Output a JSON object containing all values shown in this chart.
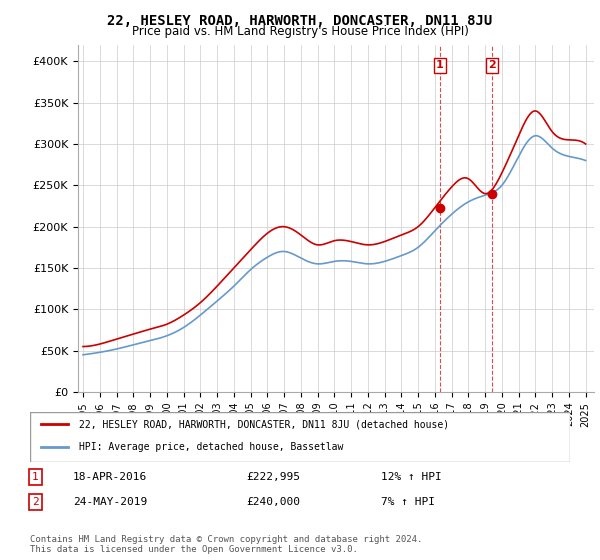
{
  "title": "22, HESLEY ROAD, HARWORTH, DONCASTER, DN11 8JU",
  "subtitle": "Price paid vs. HM Land Registry's House Price Index (HPI)",
  "ylabel_ticks": [
    "£0",
    "£50K",
    "£100K",
    "£150K",
    "£200K",
    "£250K",
    "£300K",
    "£350K",
    "£400K"
  ],
  "ytick_values": [
    0,
    50000,
    100000,
    150000,
    200000,
    250000,
    300000,
    350000,
    400000
  ],
  "ylim": [
    0,
    420000
  ],
  "xlim_start": 1995.0,
  "xlim_end": 2025.5,
  "red_color": "#cc0000",
  "blue_color": "#6699cc",
  "grid_color": "#cccccc",
  "bg_color": "#ffffff",
  "transaction1_x": 2016.3,
  "transaction1_y": 222995,
  "transaction2_x": 2019.4,
  "transaction2_y": 240000,
  "legend_red": "22, HESLEY ROAD, HARWORTH, DONCASTER, DN11 8JU (detached house)",
  "legend_blue": "HPI: Average price, detached house, Bassetlaw",
  "note1_date": "18-APR-2016",
  "note1_price": "£222,995",
  "note1_hpi": "12% ↑ HPI",
  "note2_date": "24-MAY-2019",
  "note2_price": "£240,000",
  "note2_hpi": "7% ↑ HPI",
  "footer": "Contains HM Land Registry data © Crown copyright and database right 2024.\nThis data is licensed under the Open Government Licence v3.0.",
  "hpi_years": [
    1995,
    1996,
    1997,
    1998,
    1999,
    2000,
    2001,
    2002,
    2003,
    2004,
    2005,
    2006,
    2007,
    2008,
    2009,
    2010,
    2011,
    2012,
    2013,
    2014,
    2015,
    2016,
    2017,
    2018,
    2019,
    2020,
    2021,
    2022,
    2023,
    2024,
    2025
  ],
  "hpi_values": [
    45000,
    48000,
    52000,
    57000,
    62000,
    68000,
    78000,
    93000,
    110000,
    128000,
    148000,
    163000,
    170000,
    162000,
    155000,
    158000,
    158000,
    155000,
    158000,
    165000,
    175000,
    195000,
    215000,
    230000,
    238000,
    250000,
    285000,
    310000,
    295000,
    285000,
    280000
  ],
  "red_years": [
    1995,
    1996,
    1997,
    1998,
    1999,
    2000,
    2001,
    2002,
    2003,
    2004,
    2005,
    2006,
    2007,
    2008,
    2009,
    2010,
    2011,
    2012,
    2013,
    2014,
    2015,
    2016,
    2017,
    2018,
    2019,
    2020,
    2021,
    2022,
    2023,
    2024,
    2025
  ],
  "red_values": [
    55000,
    58000,
    64000,
    70000,
    76000,
    82000,
    93000,
    108000,
    128000,
    150000,
    172000,
    192000,
    200000,
    190000,
    178000,
    183000,
    182000,
    178000,
    182000,
    190000,
    200000,
    222995,
    248000,
    258000,
    240000,
    265000,
    310000,
    340000,
    315000,
    305000,
    300000
  ]
}
